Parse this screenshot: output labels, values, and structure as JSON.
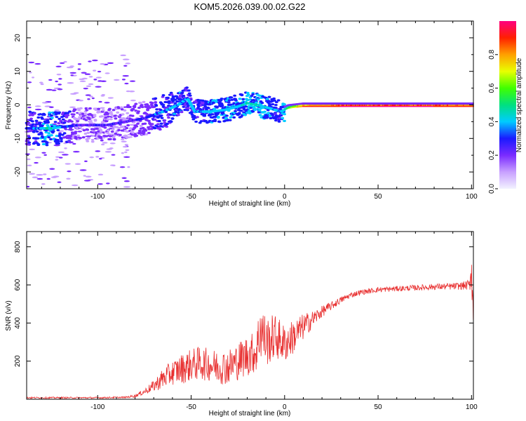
{
  "title": "KOM5.2026.039.00.02.G22",
  "chart_data": [
    {
      "type": "heatmap",
      "xlabel": "Height of straight line (km)",
      "ylabel": "Frequency (Hz)",
      "xlim": [
        -138,
        101
      ],
      "ylim": [
        -25,
        25
      ],
      "xticks": [
        -100,
        -50,
        0,
        50,
        100
      ],
      "yticks": [
        -20,
        -10,
        0,
        10,
        20
      ],
      "grid": false,
      "colorbar": {
        "label": "Normalized spectral amplitude",
        "range": [
          0,
          1
        ],
        "ticks": [
          0.0,
          0.2,
          0.4,
          0.6,
          0.8
        ],
        "colors": [
          "#f2f2ff",
          "#c8a0ff",
          "#7a2bff",
          "#1a1aff",
          "#00ccff",
          "#00e080",
          "#40ff00",
          "#e8ff00",
          "#ffa000",
          "#ff2000",
          "#ff0080"
        ]
      },
      "trace_points": [
        {
          "x": -138,
          "y": -7,
          "a": 0.25
        },
        {
          "x": -125,
          "y": -7,
          "a": 0.4
        },
        {
          "x": -110,
          "y": -6,
          "a": 0.18
        },
        {
          "x": -95,
          "y": -6,
          "a": 0.2
        },
        {
          "x": -85,
          "y": -5,
          "a": 0.18
        },
        {
          "x": -75,
          "y": -4,
          "a": 0.22
        },
        {
          "x": -65,
          "y": -2,
          "a": 0.3
        },
        {
          "x": -57,
          "y": 0,
          "a": 0.35
        },
        {
          "x": -52,
          "y": 2,
          "a": 0.3
        },
        {
          "x": -48,
          "y": -2,
          "a": 0.3
        },
        {
          "x": -40,
          "y": -2,
          "a": 0.35
        },
        {
          "x": -32,
          "y": -1.5,
          "a": 0.35
        },
        {
          "x": -25,
          "y": -0.5,
          "a": 0.35
        },
        {
          "x": -20,
          "y": 0.5,
          "a": 0.4
        },
        {
          "x": -15,
          "y": 0,
          "a": 0.4
        },
        {
          "x": -8,
          "y": -1,
          "a": 0.35
        },
        {
          "x": -2,
          "y": -2,
          "a": 0.3
        },
        {
          "x": 2,
          "y": -1,
          "a": 0.6
        },
        {
          "x": 10,
          "y": -0.5,
          "a": 0.85
        },
        {
          "x": 30,
          "y": -0.5,
          "a": 0.95
        },
        {
          "x": 50,
          "y": -0.5,
          "a": 0.97
        },
        {
          "x": 80,
          "y": -0.5,
          "a": 0.95
        },
        {
          "x": 101,
          "y": -0.5,
          "a": 0.9
        }
      ]
    },
    {
      "type": "line",
      "xlabel": "Height of straight line (km)",
      "ylabel": "SNR (v/v)",
      "xlim": [
        -138,
        101
      ],
      "ylim": [
        0,
        880
      ],
      "xticks": [
        -100,
        -50,
        0,
        50,
        100
      ],
      "yticks": [
        200,
        400,
        600,
        800
      ],
      "grid": false,
      "series": [
        {
          "name": "SNR",
          "color": "#e83030",
          "x": [
            -138,
            -120,
            -100,
            -85,
            -80,
            -75,
            -70,
            -65,
            -60,
            -55,
            -50,
            -45,
            -40,
            -35,
            -30,
            -25,
            -20,
            -15,
            -13,
            -10,
            -5,
            0,
            5,
            10,
            15,
            20,
            25,
            30,
            35,
            40,
            50,
            60,
            70,
            80,
            90,
            95,
            99,
            100,
            101
          ],
          "values": [
            8,
            8,
            8,
            10,
            18,
            40,
            70,
            110,
            140,
            160,
            180,
            190,
            180,
            170,
            170,
            200,
            230,
            250,
            380,
            300,
            330,
            290,
            330,
            380,
            420,
            460,
            490,
            520,
            545,
            560,
            575,
            580,
            585,
            590,
            592,
            595,
            600,
            700,
            420
          ],
          "noise_amp": [
            4,
            4,
            4,
            4,
            8,
            15,
            30,
            55,
            65,
            80,
            85,
            90,
            85,
            90,
            95,
            100,
            110,
            110,
            180,
            130,
            120,
            100,
            90,
            70,
            45,
            30,
            22,
            18,
            15,
            14,
            14,
            14,
            15,
            16,
            18,
            20,
            28,
            140,
            60
          ]
        }
      ]
    }
  ]
}
